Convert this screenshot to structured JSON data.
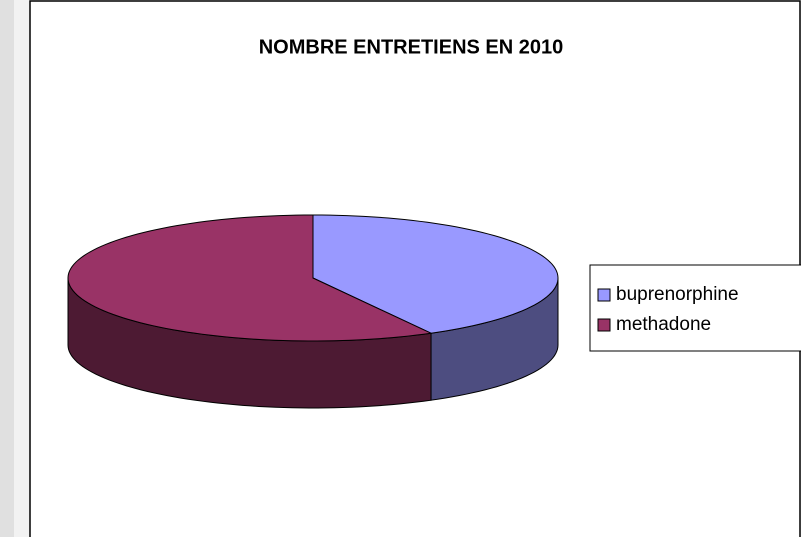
{
  "chart_data": {
    "type": "pie",
    "title": "NOMBRE ENTRETIENS EN 2010",
    "categories": [
      "buprenorphine",
      "methadone"
    ],
    "values": [
      42,
      58
    ],
    "colors": [
      "#9999ff",
      "#993366"
    ],
    "side_colors": [
      "#4d4d80",
      "#4d1a33"
    ],
    "legend": "right"
  }
}
